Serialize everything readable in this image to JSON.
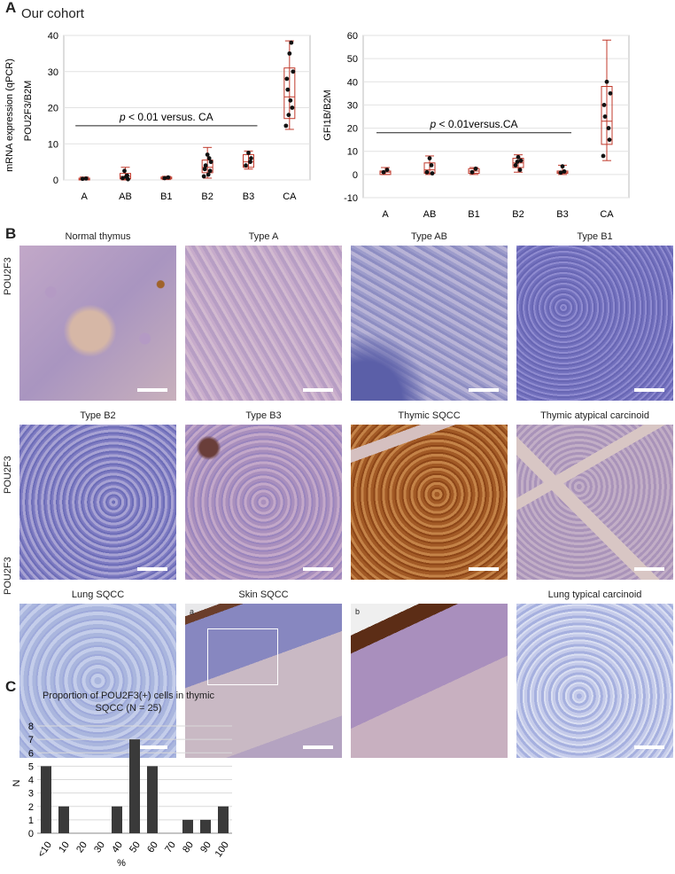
{
  "panel_a": {
    "letter": "A",
    "cohort_title": "Our cohort",
    "left": {
      "ylabel_outer": "mRNA expression (qPCR)",
      "ylabel": "POU2F3/B2M",
      "categories": [
        "A",
        "AB",
        "B1",
        "B2",
        "B3",
        "CA"
      ],
      "yticks": [
        "0",
        "10",
        "20",
        "30",
        "40"
      ],
      "ylim": [
        0,
        40
      ],
      "annotation_p": "p",
      "annotation_rest": " < 0.01 versus. CA"
    },
    "right": {
      "ylabel": "GFI1B/B2M",
      "categories": [
        "A",
        "AB",
        "B1",
        "B2",
        "B3",
        "CA"
      ],
      "yticks": [
        "-10",
        "0",
        "10",
        "20",
        "30",
        "40",
        "50",
        "60"
      ],
      "ylim": [
        -10,
        60
      ],
      "annotation_p": "p",
      "annotation_rest": " < 0.01versus.CA"
    }
  },
  "panel_b": {
    "letter": "B",
    "row_label": "POU2F3",
    "row1": [
      "Normal thymus",
      "Type A",
      "Type AB",
      "Type B1"
    ],
    "row2": [
      "Type B2",
      "Type B3",
      "Thymic SQCC",
      "Thymic atypical carcinoid"
    ],
    "row3": [
      "Lung SQCC",
      "Skin SQCC",
      "",
      "Lung typical carcinoid"
    ],
    "sub_a": "a",
    "sub_b": "b",
    "colors": {
      "hema_purple": "#8a7fbf",
      "brown_stain": "#a0632a",
      "pale_blue": "#b8c4e4"
    }
  },
  "panel_c": {
    "letter": "C",
    "title_line1": "Proportion of POU2F3(+) cells in thymic",
    "title_line2": "SQCC (N = 25)",
    "chart_data": {
      "type": "bar",
      "categories": [
        "<10",
        "10",
        "20",
        "30",
        "40",
        "50",
        "60",
        "70",
        "80",
        "90",
        "100"
      ],
      "values": [
        5,
        2,
        0,
        0,
        2,
        7,
        5,
        0,
        1,
        1,
        2
      ],
      "yticks": [
        "0",
        "1",
        "2",
        "3",
        "4",
        "5",
        "6",
        "7",
        "8"
      ],
      "ylim": [
        0,
        8
      ],
      "xlabel": "%",
      "ylabel": "N",
      "bar_color": "#3a3a3a"
    }
  }
}
